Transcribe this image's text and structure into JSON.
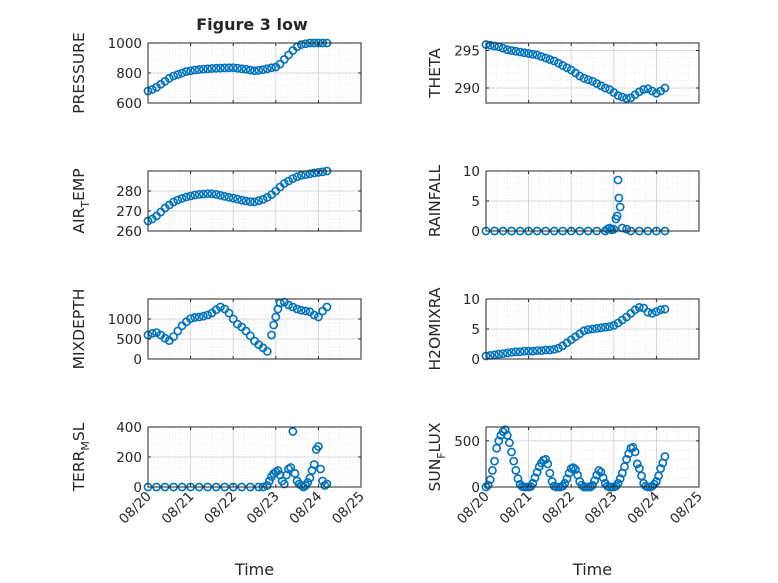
{
  "figure": {
    "title": "Figure 3 low"
  },
  "chart_data": [
    {
      "type": "scatter",
      "ylabel": "PRESSURE",
      "xlim": [
        0,
        5
      ],
      "ylim": [
        600,
        1000
      ],
      "yticks": [
        600,
        800,
        1000
      ],
      "xticks": [
        0,
        1,
        2,
        3,
        4,
        5
      ],
      "xticklabels": [],
      "grid": true,
      "minor_grid": true,
      "x": [
        0.0,
        0.1,
        0.2,
        0.3,
        0.4,
        0.5,
        0.6,
        0.7,
        0.8,
        0.9,
        1.0,
        1.1,
        1.2,
        1.3,
        1.4,
        1.5,
        1.6,
        1.7,
        1.8,
        1.9,
        2.0,
        2.1,
        2.2,
        2.3,
        2.4,
        2.5,
        2.6,
        2.7,
        2.8,
        2.9,
        3.0,
        3.1,
        3.2,
        3.3,
        3.4,
        3.5,
        3.6,
        3.7,
        3.8,
        3.9,
        4.0,
        4.1,
        4.2
      ],
      "y": [
        680,
        690,
        705,
        725,
        745,
        765,
        780,
        790,
        800,
        810,
        815,
        820,
        823,
        826,
        828,
        830,
        832,
        833,
        834,
        835,
        835,
        832,
        828,
        825,
        820,
        815,
        818,
        822,
        828,
        835,
        840,
        860,
        890,
        920,
        950,
        975,
        990,
        995,
        1000,
        1000,
        1000,
        1000,
        1000
      ]
    },
    {
      "type": "scatter",
      "ylabel": "THETA",
      "xlim": [
        0,
        5
      ],
      "ylim": [
        288,
        296
      ],
      "yticks": [
        290,
        295
      ],
      "xticks": [
        0,
        1,
        2,
        3,
        4,
        5
      ],
      "xticklabels": [],
      "grid": true,
      "minor_grid": true,
      "x": [
        0.0,
        0.1,
        0.2,
        0.3,
        0.4,
        0.5,
        0.6,
        0.7,
        0.8,
        0.9,
        1.0,
        1.1,
        1.2,
        1.3,
        1.4,
        1.5,
        1.6,
        1.7,
        1.8,
        1.9,
        2.0,
        2.1,
        2.2,
        2.3,
        2.4,
        2.5,
        2.6,
        2.7,
        2.8,
        2.9,
        3.0,
        3.1,
        3.2,
        3.3,
        3.4,
        3.5,
        3.6,
        3.7,
        3.8,
        3.9,
        4.0,
        4.1,
        4.2
      ],
      "y": [
        295.8,
        295.7,
        295.6,
        295.5,
        295.3,
        295.1,
        295.0,
        294.9,
        294.8,
        294.7,
        294.6,
        294.5,
        294.4,
        294.2,
        294.0,
        293.8,
        293.6,
        293.3,
        293.0,
        292.7,
        292.4,
        292.0,
        291.6,
        291.3,
        291.1,
        290.9,
        290.6,
        290.3,
        290.0,
        289.8,
        289.4,
        289.0,
        288.8,
        288.6,
        288.7,
        289.1,
        289.5,
        289.8,
        289.9,
        289.6,
        289.3,
        289.6,
        290.0
      ]
    },
    {
      "type": "scatter",
      "ylabel": "AIR_TEMP",
      "ylabel_main": "AIR",
      "ylabel_sub": "T",
      "ylabel_rest": "EMP",
      "xlim": [
        0,
        5
      ],
      "ylim": [
        260,
        290
      ],
      "yticks": [
        260,
        270,
        280
      ],
      "xticks": [
        0,
        1,
        2,
        3,
        4,
        5
      ],
      "xticklabels": [],
      "grid": true,
      "minor_grid": true,
      "x": [
        0.0,
        0.1,
        0.2,
        0.3,
        0.4,
        0.5,
        0.6,
        0.7,
        0.8,
        0.9,
        1.0,
        1.1,
        1.2,
        1.3,
        1.4,
        1.5,
        1.6,
        1.7,
        1.8,
        1.9,
        2.0,
        2.1,
        2.2,
        2.3,
        2.4,
        2.5,
        2.6,
        2.7,
        2.8,
        2.9,
        3.0,
        3.1,
        3.2,
        3.3,
        3.4,
        3.5,
        3.6,
        3.7,
        3.8,
        3.9,
        4.0,
        4.1,
        4.2
      ],
      "y": [
        265,
        266,
        267.5,
        269.5,
        271.5,
        273,
        274.5,
        275.5,
        276.3,
        277,
        277.5,
        278,
        278.3,
        278.5,
        278.7,
        278.6,
        278.3,
        277.8,
        277.3,
        276.8,
        276.4,
        275.9,
        275.4,
        275,
        274.7,
        274.6,
        275.1,
        275.8,
        276.8,
        278.2,
        280,
        282,
        283.8,
        285,
        286.2,
        287.1,
        287.8,
        288.2,
        288.6,
        289,
        289.3,
        289.6,
        290
      ]
    },
    {
      "type": "scatter",
      "ylabel": "RAINFALL",
      "xlim": [
        0,
        5
      ],
      "ylim": [
        0,
        10
      ],
      "yticks": [
        0,
        5,
        10
      ],
      "xticks": [
        0,
        1,
        2,
        3,
        4,
        5
      ],
      "xticklabels": [],
      "grid": true,
      "minor_grid": true,
      "x": [
        0.0,
        0.2,
        0.4,
        0.6,
        0.8,
        1.0,
        1.2,
        1.4,
        1.6,
        1.8,
        2.0,
        2.2,
        2.4,
        2.6,
        2.8,
        2.85,
        2.9,
        2.95,
        3.0,
        3.05,
        3.08,
        3.1,
        3.12,
        3.15,
        3.2,
        3.3,
        3.4,
        3.6,
        3.8,
        4.0,
        4.2
      ],
      "y": [
        0,
        0,
        0,
        0,
        0,
        0,
        0,
        0,
        0,
        0,
        0,
        0,
        0,
        0,
        0,
        0.3,
        0.5,
        0.2,
        0.3,
        2.0,
        2.5,
        8.5,
        5.5,
        4.0,
        0.5,
        0.3,
        0,
        0,
        0,
        0,
        0
      ]
    },
    {
      "type": "scatter",
      "ylabel": "MIXDEPTH",
      "xlim": [
        0,
        5
      ],
      "ylim": [
        0,
        1500
      ],
      "yticks": [
        0,
        500,
        1000
      ],
      "xticks": [
        0,
        1,
        2,
        3,
        4,
        5
      ],
      "xticklabels": [],
      "grid": true,
      "minor_grid": true,
      "x": [
        0.0,
        0.1,
        0.2,
        0.3,
        0.4,
        0.5,
        0.6,
        0.7,
        0.8,
        0.9,
        1.0,
        1.1,
        1.2,
        1.3,
        1.4,
        1.5,
        1.6,
        1.7,
        1.8,
        1.9,
        2.0,
        2.1,
        2.2,
        2.3,
        2.4,
        2.5,
        2.6,
        2.7,
        2.8,
        2.9,
        2.95,
        3.0,
        3.05,
        3.1,
        3.2,
        3.3,
        3.4,
        3.5,
        3.6,
        3.7,
        3.8,
        3.9,
        4.0,
        4.1,
        4.2
      ],
      "y": [
        600,
        640,
        660,
        600,
        520,
        460,
        560,
        700,
        830,
        930,
        1010,
        1040,
        1050,
        1070,
        1100,
        1150,
        1230,
        1300,
        1250,
        1150,
        1000,
        870,
        800,
        700,
        580,
        450,
        360,
        280,
        190,
        600,
        850,
        1050,
        1250,
        1400,
        1420,
        1350,
        1300,
        1250,
        1220,
        1200,
        1180,
        1100,
        1050,
        1200,
        1300
      ]
    },
    {
      "type": "scatter",
      "ylabel": "H2OMIXRA",
      "xlim": [
        0,
        5
      ],
      "ylim": [
        0,
        10
      ],
      "yticks": [
        0,
        5,
        10
      ],
      "xticks": [
        0,
        1,
        2,
        3,
        4,
        5
      ],
      "xticklabels": [],
      "grid": true,
      "minor_grid": true,
      "x": [
        0.0,
        0.1,
        0.2,
        0.3,
        0.4,
        0.5,
        0.6,
        0.7,
        0.8,
        0.9,
        1.0,
        1.1,
        1.2,
        1.3,
        1.4,
        1.5,
        1.6,
        1.7,
        1.8,
        1.9,
        2.0,
        2.1,
        2.2,
        2.3,
        2.4,
        2.5,
        2.6,
        2.7,
        2.8,
        2.9,
        3.0,
        3.1,
        3.2,
        3.3,
        3.4,
        3.5,
        3.6,
        3.7,
        3.8,
        3.9,
        4.0,
        4.1,
        4.2
      ],
      "y": [
        0.5,
        0.6,
        0.7,
        0.8,
        0.9,
        1.0,
        1.1,
        1.2,
        1.2,
        1.3,
        1.3,
        1.3,
        1.4,
        1.4,
        1.5,
        1.5,
        1.6,
        1.8,
        2.2,
        2.7,
        3.2,
        3.7,
        4.2,
        4.7,
        4.9,
        5.0,
        5.1,
        5.2,
        5.3,
        5.4,
        5.6,
        6.0,
        6.5,
        7.0,
        7.6,
        8.2,
        8.6,
        8.5,
        7.8,
        7.6,
        7.9,
        8.2,
        8.3
      ]
    },
    {
      "type": "scatter",
      "ylabel": "TERR_MSL",
      "ylabel_main": "TERR",
      "ylabel_sub": "M",
      "ylabel_rest": "SL",
      "xlim": [
        0,
        5
      ],
      "ylim": [
        0,
        400
      ],
      "yticks": [
        0,
        200,
        400
      ],
      "xticks": [
        0,
        1,
        2,
        3,
        4,
        5
      ],
      "xticklabels": [
        "08/20",
        "08/21",
        "08/22",
        "08/23",
        "08/24",
        "08/25"
      ],
      "xlabel": "Time",
      "grid": true,
      "minor_grid": true,
      "x": [
        0.0,
        0.2,
        0.4,
        0.6,
        0.8,
        1.0,
        1.2,
        1.4,
        1.6,
        1.8,
        2.0,
        2.2,
        2.4,
        2.6,
        2.7,
        2.8,
        2.85,
        2.9,
        2.95,
        3.0,
        3.05,
        3.1,
        3.15,
        3.2,
        3.25,
        3.3,
        3.35,
        3.4,
        3.45,
        3.5,
        3.55,
        3.6,
        3.65,
        3.7,
        3.75,
        3.8,
        3.85,
        3.9,
        3.95,
        4.0,
        4.05,
        4.1,
        4.15,
        4.2
      ],
      "y": [
        0,
        0,
        0,
        0,
        0,
        0,
        0,
        0,
        0,
        0,
        0,
        0,
        0,
        0,
        0,
        10,
        40,
        70,
        90,
        100,
        110,
        80,
        40,
        20,
        80,
        120,
        130,
        370,
        90,
        40,
        20,
        10,
        0,
        10,
        30,
        60,
        110,
        150,
        250,
        270,
        120,
        40,
        10,
        20
      ]
    },
    {
      "type": "scatter",
      "ylabel": "SUN_FLUX",
      "ylabel_main": "SUN",
      "ylabel_sub": "F",
      "ylabel_rest": "LUX",
      "xlim": [
        0,
        5
      ],
      "ylim": [
        0,
        650
      ],
      "yticks": [
        0,
        500
      ],
      "xticks": [
        0,
        1,
        2,
        3,
        4,
        5
      ],
      "xticklabels": [
        "08/20",
        "08/21",
        "08/22",
        "08/23",
        "08/24",
        "08/25"
      ],
      "xlabel": "Time",
      "grid": true,
      "minor_grid": true,
      "x": [
        0.0,
        0.05,
        0.1,
        0.15,
        0.2,
        0.25,
        0.3,
        0.35,
        0.4,
        0.45,
        0.5,
        0.55,
        0.6,
        0.65,
        0.7,
        0.75,
        0.8,
        0.85,
        0.9,
        0.95,
        1.0,
        1.05,
        1.1,
        1.15,
        1.2,
        1.25,
        1.3,
        1.35,
        1.4,
        1.45,
        1.5,
        1.55,
        1.6,
        1.65,
        1.7,
        1.75,
        1.8,
        1.85,
        1.9,
        1.95,
        2.0,
        2.05,
        2.1,
        2.15,
        2.2,
        2.25,
        2.3,
        2.35,
        2.4,
        2.45,
        2.5,
        2.55,
        2.6,
        2.65,
        2.7,
        2.75,
        2.8,
        2.85,
        2.9,
        2.95,
        3.0,
        3.05,
        3.1,
        3.15,
        3.2,
        3.25,
        3.3,
        3.35,
        3.4,
        3.45,
        3.5,
        3.55,
        3.6,
        3.65,
        3.7,
        3.75,
        3.8,
        3.85,
        3.9,
        3.95,
        4.0,
        4.05,
        4.1,
        4.15,
        4.2
      ],
      "y": [
        0,
        20,
        80,
        180,
        280,
        420,
        500,
        560,
        600,
        620,
        560,
        480,
        380,
        280,
        180,
        90,
        30,
        5,
        0,
        0,
        0,
        5,
        40,
        100,
        160,
        220,
        260,
        290,
        300,
        250,
        150,
        60,
        10,
        0,
        0,
        0,
        10,
        40,
        90,
        150,
        200,
        210,
        190,
        130,
        60,
        20,
        0,
        0,
        0,
        0,
        20,
        70,
        130,
        180,
        160,
        100,
        40,
        10,
        0,
        0,
        0,
        10,
        40,
        90,
        150,
        220,
        300,
        360,
        420,
        430,
        380,
        250,
        200,
        120,
        40,
        10,
        0,
        0,
        10,
        30,
        60,
        120,
        200,
        260,
        330
      ]
    }
  ]
}
